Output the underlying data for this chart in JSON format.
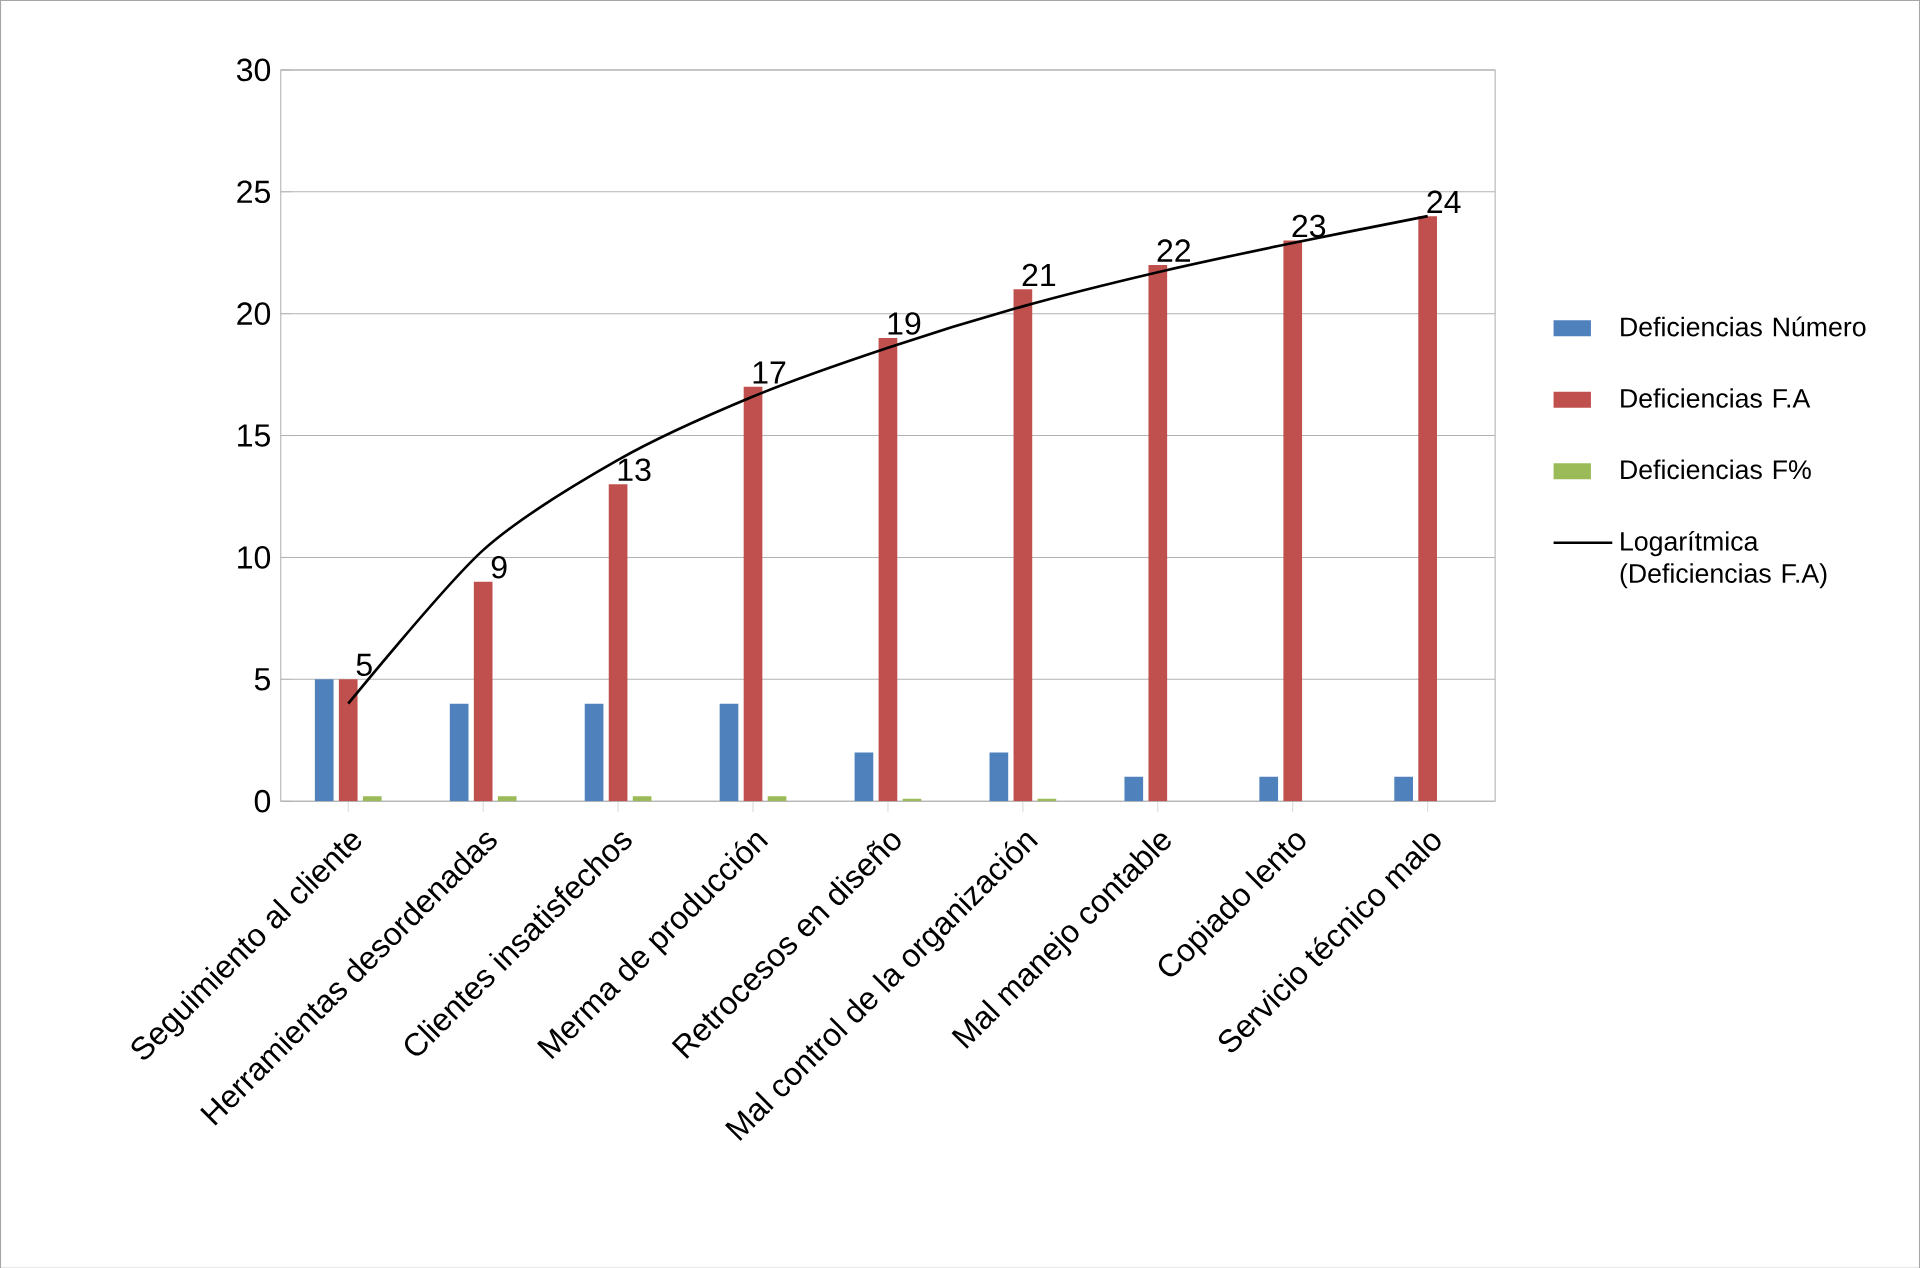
{
  "chart_data": {
    "type": "bar",
    "categories": [
      "Seguimiento al cliente",
      "Herramientas desordenadas",
      "Clientes insatisfechos",
      "Merma de producción",
      "Retrocesos en diseño",
      "Mal control de la organización",
      "Mal manejo contable",
      "Copiado lento",
      "Servicio técnico malo"
    ],
    "series": [
      {
        "name": "Deficiencias Número",
        "color": "#4f81bd",
        "values": [
          5,
          4,
          4,
          4,
          2,
          2,
          1,
          1,
          1
        ]
      },
      {
        "name": "Deficiencias F.A",
        "color": "#c0504d",
        "values": [
          5,
          9,
          13,
          17,
          19,
          21,
          22,
          23,
          24
        ],
        "value_labels": [
          "5",
          "9",
          "13",
          "17",
          "19",
          "21",
          "22",
          "23",
          "24"
        ]
      },
      {
        "name": "Deficiencias F%",
        "color": "#9bbb59",
        "values": [
          0.2,
          0.2,
          0.2,
          0.2,
          0.1,
          0.1,
          0,
          0,
          0
        ]
      },
      {
        "name": "Logarítmica (Deficiencias F.A)",
        "type": "line",
        "color": "#000000",
        "values": [
          4,
          10.3,
          14,
          16.6,
          18.6,
          20.3,
          21.7,
          22.9,
          24
        ]
      }
    ],
    "ylim": [
      0,
      30
    ],
    "yticks": [
      0,
      5,
      10,
      15,
      20,
      25,
      30
    ],
    "grid": "y",
    "legend": "right"
  }
}
